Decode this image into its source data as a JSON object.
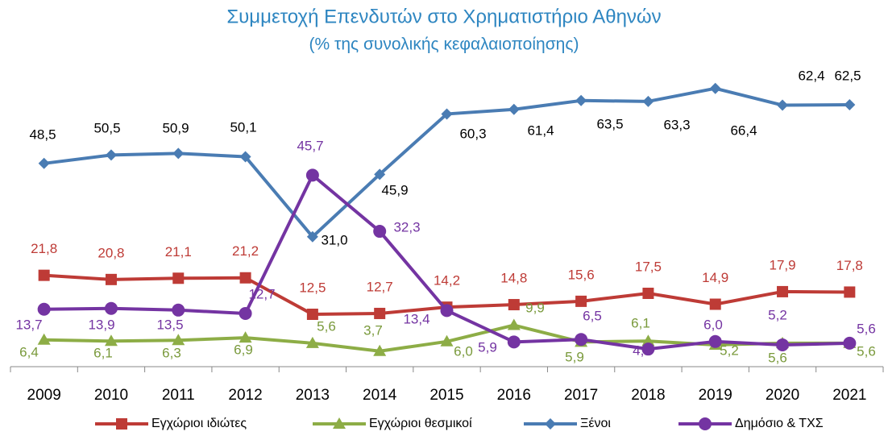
{
  "chart_data": {
    "type": "line",
    "title": "Συμμετοχή Επενδυτών στο Χρηματιστήριο Αθηνών",
    "subtitle": "(% της συνολικής κεφαλαιοποίησης)",
    "categories": [
      "2009",
      "2010",
      "2011",
      "2012",
      "2013",
      "2014",
      "2015",
      "2016",
      "2017",
      "2018",
      "2019",
      "2020",
      "2021"
    ],
    "ylim": [
      0,
      70
    ],
    "series": [
      {
        "name": "Εγχώριοι ιδιώτες",
        "color": "#be3b36",
        "marker": "square",
        "values": [
          21.8,
          20.8,
          21.1,
          21.2,
          12.5,
          12.7,
          14.2,
          14.8,
          15.6,
          17.5,
          14.9,
          17.9,
          17.8
        ],
        "value_labels": [
          "21,8",
          "20,8",
          "21,1",
          "21,2",
          "12,5",
          "12,7",
          "14,2",
          "14,8",
          "15,6",
          "17,5",
          "14,9",
          "17,9",
          "17,8"
        ]
      },
      {
        "name": "Εγχώριοι θεσμικοί",
        "color": "#8dad46",
        "marker": "triangle",
        "values": [
          6.4,
          6.1,
          6.3,
          6.9,
          5.6,
          3.7,
          6.0,
          9.9,
          5.9,
          6.1,
          5.2,
          5.6,
          5.6
        ],
        "value_labels": [
          "6,4",
          "6,1",
          "6,3",
          "6,9",
          "5,6",
          "3,7",
          "6,0",
          "9,9",
          "5,9",
          "6,1",
          "5,2",
          "5,6",
          "5,6"
        ]
      },
      {
        "name": "Ξένοι",
        "color": "#4a7cb3",
        "marker": "diamond",
        "values": [
          48.5,
          50.5,
          50.9,
          50.1,
          31.0,
          45.9,
          60.3,
          61.4,
          63.5,
          63.3,
          66.4,
          62.4,
          62.5
        ],
        "value_labels": [
          "48,5",
          "50,5",
          "50,9",
          "50,1",
          "31,0",
          "45,9",
          "60,3",
          "61,4",
          "63,5",
          "63,3",
          "66,4",
          "62,4",
          "62,5"
        ]
      },
      {
        "name": "Δημόσιο & ΤΧΣ",
        "color": "#7434a2",
        "marker": "circle",
        "values": [
          13.7,
          13.9,
          13.5,
          12.7,
          45.7,
          32.3,
          13.4,
          5.9,
          6.5,
          4.2,
          6.0,
          5.2,
          5.6
        ],
        "value_labels": [
          "13,7",
          "13,9",
          "13,5",
          "12,7",
          "45,7",
          "32,3",
          "13,4",
          "5,9",
          "6,5",
          "4,2",
          "6,0",
          "5,2",
          "5,6"
        ]
      }
    ]
  }
}
